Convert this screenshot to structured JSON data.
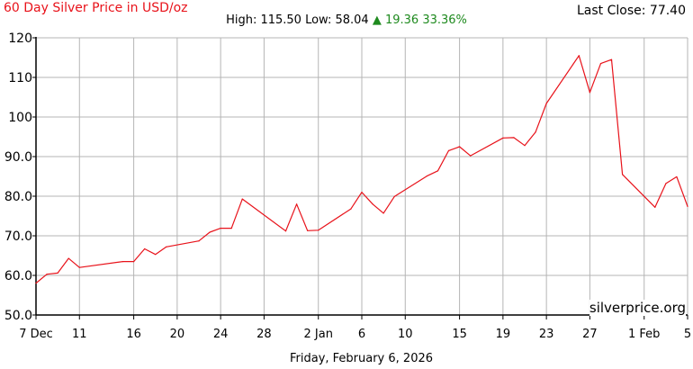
{
  "header": {
    "title": "60 Day Silver Price in USD/oz",
    "last_close": "Last Close: 77.40",
    "high_low": "High: 115.50 Low: 58.04 ",
    "change": "▲ 19.36 33.36%"
  },
  "footer": {
    "date": "Friday, February 6, 2026",
    "watermark": "silverprice.org"
  },
  "colors": {
    "line": "#e8121a",
    "grid": "#b4b4b4",
    "axis": "#000000",
    "up": "#1e8a1e"
  },
  "chart_data": {
    "type": "line",
    "title": "60 Day Silver Price in USD/oz",
    "xlabel": "",
    "ylabel": "",
    "ylim": [
      50,
      120
    ],
    "y_ticks": [
      "50.0",
      "60.0",
      "70.0",
      "80.0",
      "90.0",
      "100",
      "110",
      "120"
    ],
    "x_ticks": [
      "7 Dec",
      "11",
      "16",
      "20",
      "24",
      "28",
      "2 Jan",
      "6",
      "10",
      "15",
      "19",
      "23",
      "27",
      "1 Feb",
      "5"
    ],
    "grid": true,
    "series": [
      {
        "x": [
          "2025-12-07",
          "2025-12-08",
          "2025-12-09",
          "2025-12-10",
          "2025-12-11",
          "2025-12-15",
          "2025-12-16",
          "2025-12-17",
          "2025-12-18",
          "2025-12-19",
          "2025-12-22",
          "2025-12-23",
          "2025-12-24",
          "2025-12-25",
          "2025-12-26",
          "2025-12-30",
          "2025-12-31",
          "2026-01-01",
          "2026-01-02",
          "2026-01-05",
          "2026-01-06",
          "2026-01-07",
          "2026-01-08",
          "2026-01-09",
          "2026-01-12",
          "2026-01-13",
          "2026-01-14",
          "2026-01-15",
          "2026-01-16",
          "2026-01-19",
          "2026-01-20",
          "2026-01-21",
          "2026-01-22",
          "2026-01-23",
          "2026-01-26",
          "2026-01-27",
          "2026-01-28",
          "2026-01-29",
          "2026-01-30",
          "2026-02-02",
          "2026-02-03",
          "2026-02-04",
          "2026-02-05"
        ],
        "values": [
          58.04,
          60.3,
          60.6,
          64.3,
          62.0,
          63.5,
          63.5,
          66.7,
          65.3,
          67.2,
          68.7,
          70.9,
          71.9,
          71.9,
          79.3,
          71.2,
          78.0,
          71.3,
          71.4,
          76.8,
          81.0,
          78.0,
          75.7,
          79.9,
          85.1,
          86.4,
          91.5,
          92.5,
          90.2,
          94.7,
          94.8,
          92.8,
          96.2,
          103.4,
          115.5,
          106.2,
          113.5,
          114.5,
          85.5,
          77.2,
          83.2,
          84.9,
          77.4
        ]
      }
    ]
  }
}
